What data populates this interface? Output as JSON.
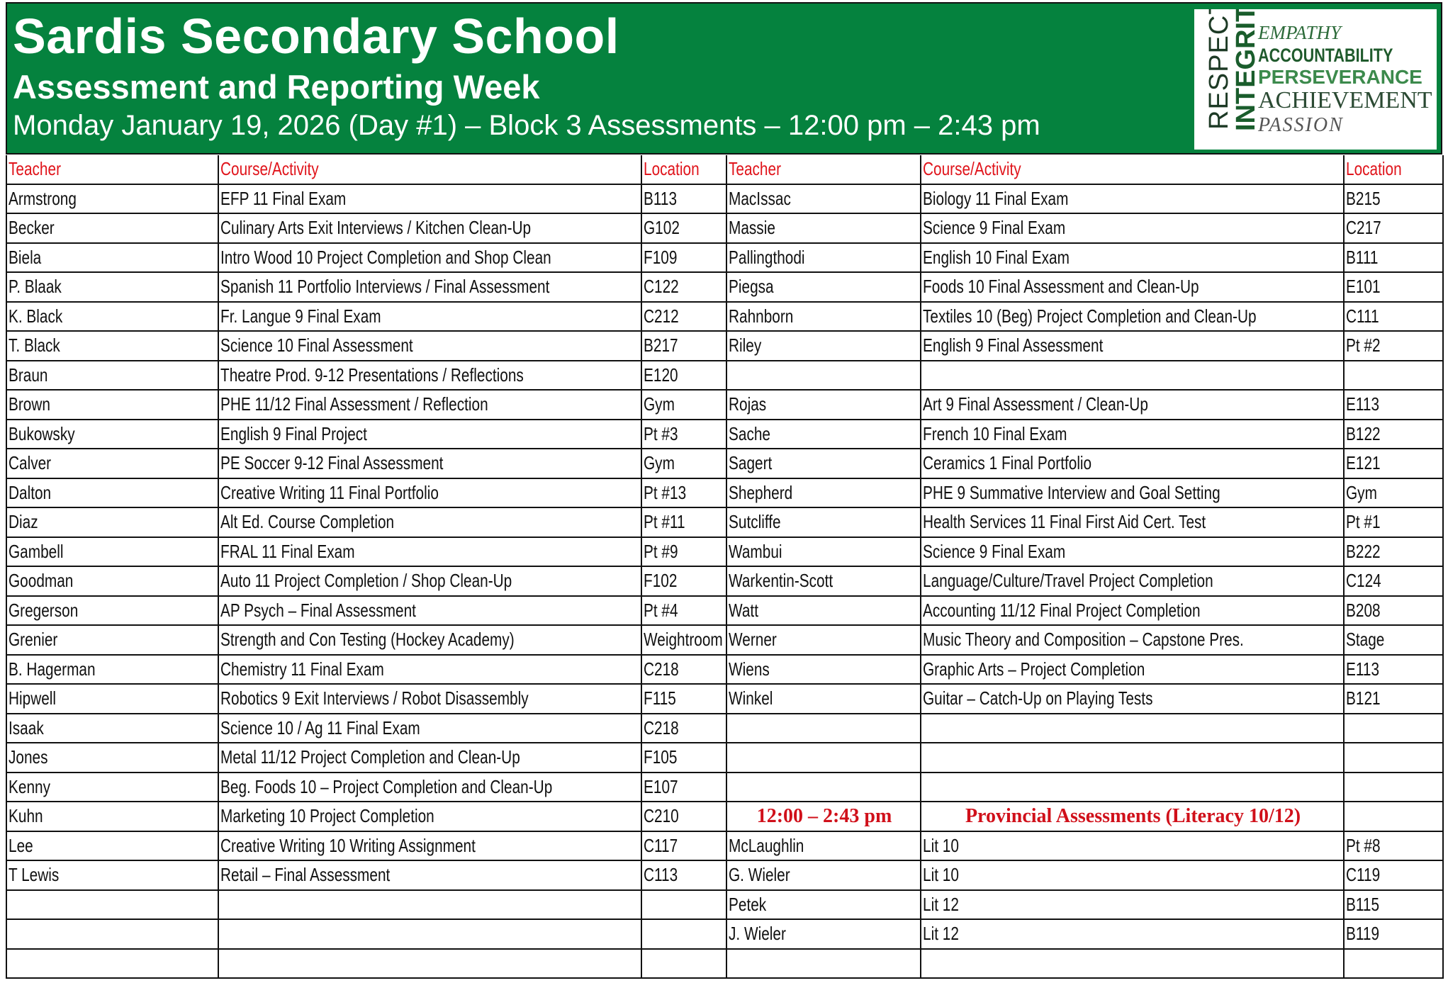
{
  "header": {
    "school": "Sardis Secondary School",
    "subtitle": "Assessment and Reporting Week",
    "session": "Monday January 19, 2026 (Day #1) – Block 3 Assessments – 12:00 pm – 2:43 pm",
    "logo_words": [
      "RESPECT",
      "INTEGRITY",
      "EMPATHY",
      "ACCOUNTABILITY",
      "PERSEVERANCE",
      "ACHIEVEMENT",
      "PASSION"
    ],
    "brand_color": "#05823e"
  },
  "columns": {
    "teacher": "Teacher",
    "course": "Course/Activity",
    "location": "Location"
  },
  "left": [
    [
      "Armstrong",
      "EFP 11 Final Exam",
      "B113"
    ],
    [
      "Becker",
      "Culinary Arts Exit Interviews / Kitchen Clean-Up",
      "G102"
    ],
    [
      "Biela",
      "Intro Wood 10 Project Completion and Shop Clean",
      "F109"
    ],
    [
      "P. Blaak",
      "Spanish 11 Portfolio Interviews / Final Assessment",
      "C122"
    ],
    [
      "K. Black",
      "Fr. Langue 9 Final Exam",
      "C212"
    ],
    [
      "T. Black",
      "Science 10 Final Assessment",
      "B217"
    ],
    [
      "Braun",
      "Theatre Prod. 9-12 Presentations / Reflections",
      "E120"
    ],
    [
      "Brown",
      "PHE 11/12 Final Assessment / Reflection",
      "Gym"
    ],
    [
      "Bukowsky",
      "English 9 Final Project",
      "Pt #3"
    ],
    [
      "Calver",
      "PE Soccer 9-12 Final Assessment",
      "Gym"
    ],
    [
      "Dalton",
      "Creative Writing 11 Final Portfolio",
      "Pt #13"
    ],
    [
      "Diaz",
      "Alt Ed. Course Completion",
      "Pt #11"
    ],
    [
      "Gambell",
      "FRAL 11 Final Exam",
      "Pt #9"
    ],
    [
      "Goodman",
      "Auto 11 Project Completion / Shop Clean-Up",
      "F102"
    ],
    [
      "Gregerson",
      "AP Psych – Final Assessment",
      "Pt #4"
    ],
    [
      "Grenier",
      "Strength and Con Testing (Hockey Academy)",
      "Weightroom"
    ],
    [
      "B. Hagerman",
      "Chemistry 11 Final Exam",
      "C218"
    ],
    [
      "Hipwell",
      "Robotics 9 Exit Interviews / Robot Disassembly",
      "F115"
    ],
    [
      "Isaak",
      "Science 10  / Ag 11 Final Exam",
      "C218"
    ],
    [
      "Jones",
      "Metal 11/12 Project Completion and Clean-Up",
      "F105"
    ],
    [
      "Kenny",
      "Beg. Foods 10 – Project Completion and Clean-Up",
      "E107"
    ],
    [
      "Kuhn",
      "Marketing 10 Project Completion",
      "C210"
    ],
    [
      "Lee",
      "Creative Writing 10 Writing Assignment",
      "C117"
    ],
    [
      "T Lewis",
      "Retail – Final Assessment",
      "C113"
    ],
    [
      "",
      "",
      ""
    ],
    [
      "",
      "",
      ""
    ],
    [
      "",
      "",
      ""
    ]
  ],
  "right": [
    [
      "MacIssac",
      "Biology 11 Final Exam",
      "B215"
    ],
    [
      "Massie",
      "Science 9 Final Exam",
      "C217"
    ],
    [
      "Pallingthodi",
      "English 10 Final Exam",
      "B111"
    ],
    [
      "Piegsa",
      "Foods 10 Final Assessment and Clean-Up",
      "E101"
    ],
    [
      "Rahnborn",
      "Textiles 10 (Beg) Project Completion and Clean-Up",
      "C111"
    ],
    [
      "Riley",
      "English 9 Final Assessment",
      "Pt #2"
    ],
    [
      "",
      "",
      ""
    ],
    [
      "Rojas",
      "Art 9 Final Assessment / Clean-Up",
      "E113"
    ],
    [
      "Sache",
      "French 10 Final Exam",
      "B122"
    ],
    [
      "Sagert",
      "Ceramics 1 Final Portfolio",
      "E121"
    ],
    [
      "Shepherd",
      "PHE 9 Summative Interview and Goal Setting",
      "Gym"
    ],
    [
      "Sutcliffe",
      "Health Services 11 Final First Aid Cert. Test",
      "Pt #1"
    ],
    [
      "Wambui",
      "Science 9 Final Exam",
      "B222"
    ],
    [
      "Warkentin-Scott",
      "Language/Culture/Travel Project Completion",
      "C124"
    ],
    [
      "Watt",
      "Accounting 11/12 Final Project Completion",
      "B208"
    ],
    [
      "Werner",
      "Music Theory and Composition – Capstone Pres.",
      "Stage"
    ],
    [
      "Wiens",
      "Graphic Arts – Project Completion",
      "E113"
    ],
    [
      "Winkel",
      "Guitar – Catch-Up on Playing Tests",
      "B121"
    ],
    [
      "",
      "",
      ""
    ],
    [
      "",
      "",
      ""
    ],
    [
      "",
      "",
      ""
    ],
    [
      "12:00 – 2:43 pm",
      "Provincial Assessments (Literacy 10/12)",
      ""
    ],
    [
      "McLaughlin",
      "Lit 10",
      "Pt #8"
    ],
    [
      "G. Wieler",
      "Lit 10",
      "C119"
    ],
    [
      "Petek",
      "Lit 12",
      "B115"
    ],
    [
      "J. Wieler",
      "Lit 12",
      "B119"
    ]
  ]
}
